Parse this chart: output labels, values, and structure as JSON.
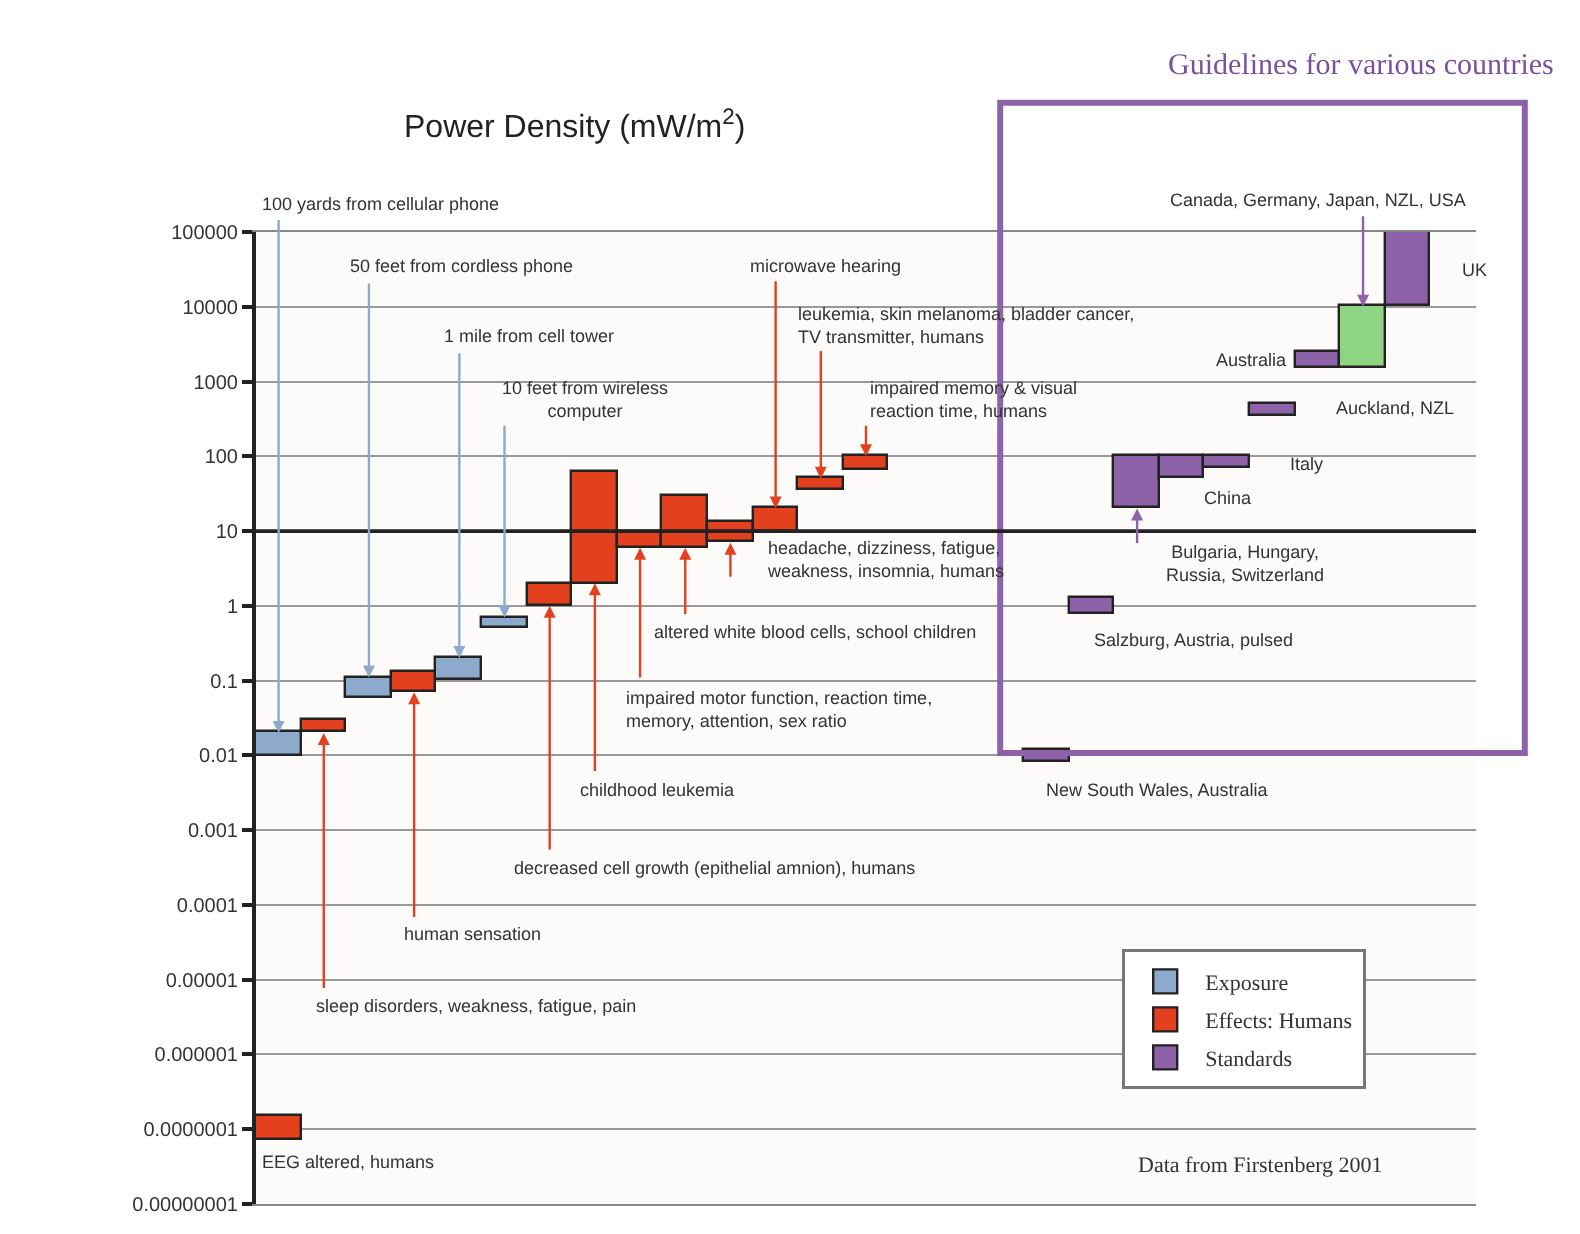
{
  "chart_data": {
    "type": "bar",
    "ylabel": "Power Density (mW/m$^{2}$)",
    "categories": [
      null,
      null,
      null,
      null,
      null,
      null,
      null,
      null,
      null,
      null,
      null,
      null,
      null,
      null,
      null,
      null,
      null,
      null,
      null,
      null,
      null,
      null,
      null,
      null,
      null,
      null,
      null
    ],
    "series": [
      {
        "name": "Exposure",
        "color": "#8da9cc",
        "base": [
          0.01,
          null,
          0.06,
          null,
          0.1,
          0.5,
          null,
          null,
          null,
          null,
          null,
          null,
          null,
          null,
          null,
          null,
          null,
          null,
          null,
          null,
          null,
          null,
          null,
          null,
          null,
          null,
          null
        ],
        "values": [
          0.01,
          null,
          0.05,
          null,
          0.1,
          0.2,
          null,
          null,
          null,
          null,
          null,
          null,
          null,
          null,
          null,
          null,
          null,
          null,
          null,
          null,
          null,
          null,
          null,
          null,
          null,
          null,
          null
        ]
      },
      {
        "name": "Effects: Humans",
        "color": "#e2401f",
        "base": [
          7e-08,
          0.02,
          null,
          0.07,
          null,
          null,
          1,
          2,
          6,
          6,
          7,
          10,
          35,
          65,
          null,
          null,
          null,
          null,
          null,
          null,
          null,
          null,
          null,
          null,
          null,
          null,
          null
        ],
        "values": [
          8e-08,
          0.01,
          null,
          0.06,
          null,
          null,
          1,
          58,
          4,
          24,
          6,
          10,
          15,
          35,
          null,
          null,
          null,
          null,
          null,
          null,
          null,
          null,
          null,
          null,
          null,
          null,
          null
        ]
      },
      {
        "name": "Standards",
        "color": "#8e62a8",
        "base": [
          null,
          null,
          null,
          null,
          null,
          null,
          null,
          null,
          null,
          null,
          null,
          null,
          null,
          null,
          null,
          null,
          null,
          0.008,
          0.8,
          20,
          50,
          70,
          350,
          1500,
          null,
          10000,
          null
        ],
        "values": [
          null,
          null,
          null,
          null,
          null,
          null,
          null,
          null,
          null,
          null,
          null,
          null,
          null,
          null,
          null,
          null,
          null,
          0.004,
          0.5,
          80,
          50,
          30,
          150,
          1000,
          null,
          90000,
          null
        ]
      },
      {
        "color": "#8fd483",
        "base": [
          null,
          null,
          null,
          null,
          null,
          null,
          null,
          null,
          null,
          null,
          null,
          null,
          null,
          null,
          null,
          null,
          null,
          null,
          null,
          null,
          null,
          null,
          null,
          null,
          1500,
          null,
          null
        ],
        "values": [
          null,
          null,
          null,
          null,
          null,
          null,
          null,
          null,
          null,
          null,
          null,
          null,
          null,
          null,
          null,
          null,
          null,
          null,
          null,
          null,
          null,
          null,
          null,
          null,
          8500,
          null,
          null
        ]
      }
    ],
    "log": true,
    "ylim": [
      1e-08,
      100000
    ],
    "yticks": [
      {
        "value": 1e-08,
        "label": "0.00000001"
      },
      {
        "value": 1e-07,
        "label": "0.0000001"
      },
      {
        "value": 1e-06,
        "label": "0.000001"
      },
      {
        "value": 1e-05,
        "label": "0.00001"
      },
      0.0001,
      0.001,
      0.01,
      0.1,
      1,
      10,
      100,
      1000,
      10000,
      100000
    ],
    "grid": "y",
    "ref_lines": [
      {
        "axis": "y",
        "value": 10,
        "color": "#222222"
      }
    ],
    "tick_labels": "y",
    "legend": "bottom right",
    "annotations": [
      "100 yards from cellular phone",
      "50 feet from cordless phone",
      "1 mile from cell tower",
      "10 feet from wireless\ncomputer",
      "microwave hearing",
      "leukemia, skin melanoma, bladder cancer,\nTV transmitter, humans",
      "impaired memory & visual\nreaction time, humans",
      "headache, dizziness, fatigue,\nweakness, insomnia, humans",
      "altered white blood cells, school children",
      "impaired motor function, reaction time,\nmemory, attention, sex ratio",
      "childhood leukemia",
      "decreased cell growth (epithelial amnion), humans",
      "human sensation",
      "sleep disorders, weakness, fatigue, pain",
      "EEG altered, humans",
      "New South Wales, Australia",
      "Salzburg, Austria, pulsed",
      "Bulgaria, Hungary,\nRussia, Switzerland",
      "China",
      "Italy",
      "Auckland, NZL",
      "Australia",
      "Canada, Germany, Japan, NZL, USA",
      "UK",
      "Guidelines for various countries",
      "Data from Firstenberg 2001"
    ]
  }
}
